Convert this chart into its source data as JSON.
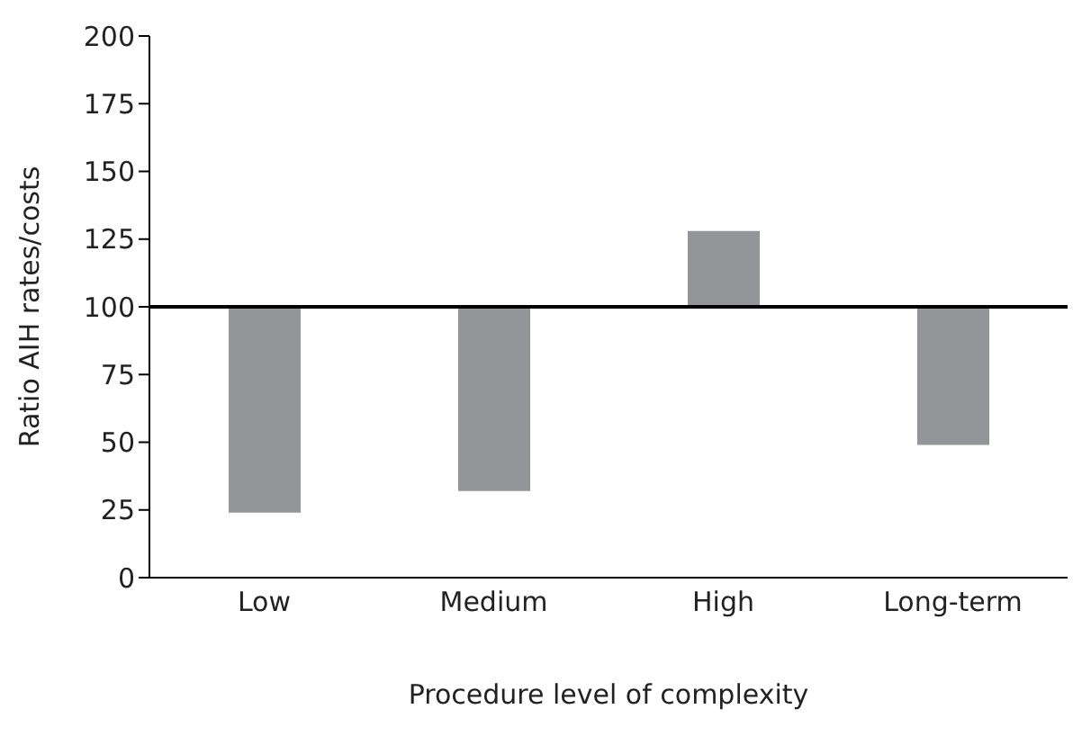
{
  "chart_data": {
    "type": "bar",
    "xlabel": "Procedure level of complexity",
    "ylabel": "Ratio AIH rates/costs",
    "categories": [
      "Low",
      "Medium",
      "High",
      "Long-term"
    ],
    "values": [
      -76,
      -68,
      28,
      -51
    ],
    "base": [
      100,
      100,
      100,
      100
    ],
    "color": "#939598",
    "ylim": [
      0,
      200
    ],
    "yticks": [
      0,
      25,
      50,
      75,
      100,
      125,
      150,
      175,
      200
    ],
    "ref_lines": [
      {
        "axis": "y",
        "value": 100,
        "color": "#000000"
      }
    ],
    "grid": false,
    "legend": false
  }
}
